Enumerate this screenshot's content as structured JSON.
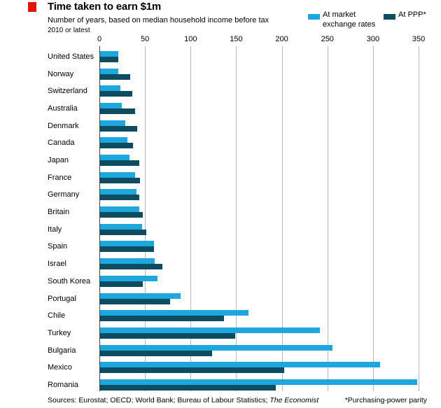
{
  "header": {
    "title": "Time taken to earn $1m",
    "subtitle": "Number of years, based on median household income before tax",
    "date_note": "2010 or latest"
  },
  "legend": {
    "market": {
      "label": "At market exchange rates"
    },
    "ppp": {
      "label": "At PPP*"
    }
  },
  "colors": {
    "accent_red": "#e3120b",
    "market_blue": "#1ea7dd",
    "ppp_dark": "#0e4c62",
    "gridline_gray": "#b9b9b9",
    "zero_axis": "#3f3f3f"
  },
  "chart_data": {
    "type": "bar",
    "orientation": "horizontal",
    "title": "Time taken to earn $1m",
    "subtitle": "Number of years, based on median household income before tax, 2010 or latest",
    "unit": "years",
    "xlabel": "",
    "ylabel": "",
    "xlim": [
      0,
      350
    ],
    "x_ticks": [
      0,
      50,
      100,
      150,
      200,
      250,
      300,
      350
    ],
    "grid": true,
    "legend_position": "top-right",
    "categories": [
      "United States",
      "Norway",
      "Switzerland",
      "Australia",
      "Denmark",
      "Canada",
      "Japan",
      "France",
      "Germany",
      "Britain",
      "Italy",
      "Spain",
      "Israel",
      "South Korea",
      "Portugal",
      "Chile",
      "Turkey",
      "Bulgaria",
      "Mexico",
      "Romania"
    ],
    "series": [
      {
        "name": "At market exchange rates",
        "color": "#1ea7dd",
        "values": [
          20,
          20,
          22,
          24,
          28,
          30,
          32,
          38,
          40,
          43,
          46,
          59,
          60,
          63,
          88,
          163,
          241,
          255,
          307,
          348
        ]
      },
      {
        "name": "At PPP*",
        "color": "#0e4c62",
        "values": [
          20,
          33,
          35,
          38,
          41,
          36,
          43,
          44,
          43,
          47,
          51,
          59,
          68,
          47,
          77,
          136,
          148,
          123,
          202,
          193
        ]
      }
    ]
  },
  "footer": {
    "sources_prefix": "Sources: Eurostat; OECD; World Bank; Bureau of Labour Statistics; ",
    "sources_italic": "The Economist",
    "note": "*Purchasing-power parity"
  }
}
